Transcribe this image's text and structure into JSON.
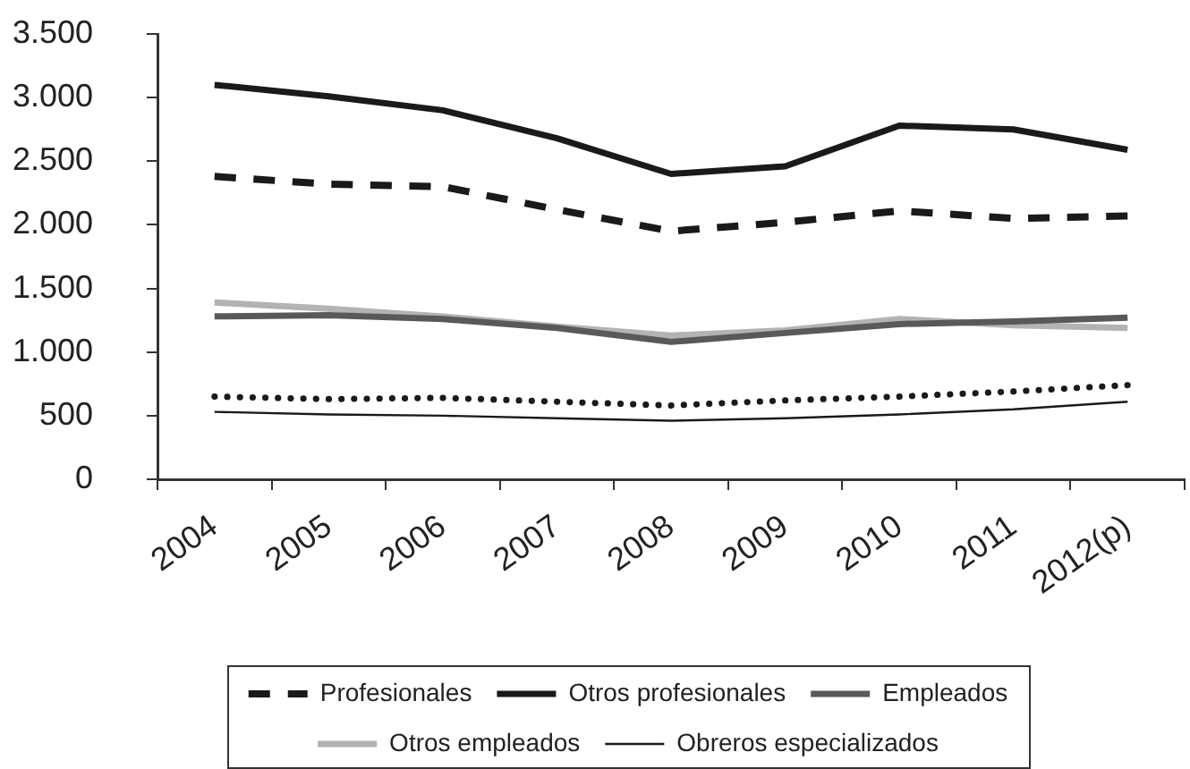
{
  "chart_data": {
    "type": "line",
    "categories": [
      "2004",
      "2005",
      "2006",
      "2007",
      "2008",
      "2009",
      "2010",
      "2011",
      "2012(p)"
    ],
    "series": [
      {
        "name": "Profesionales",
        "color": "#1a1a1a",
        "line_style": "dashed",
        "values": [
          2380,
          2320,
          2300,
          2120,
          1950,
          2020,
          2110,
          2050,
          2070
        ]
      },
      {
        "name": "Otros profesionales",
        "color": "#1a1a1a",
        "values": [
          3100,
          3010,
          2900,
          2680,
          2400,
          2460,
          2780,
          2750,
          2590
        ]
      },
      {
        "name": "Empleados",
        "color": "#595959",
        "values": [
          1280,
          1290,
          1260,
          1190,
          1080,
          1150,
          1220,
          1240,
          1270
        ]
      },
      {
        "name": "Otros empleados",
        "color": "#b3b3b3",
        "values": [
          1390,
          1340,
          1280,
          1200,
          1130,
          1170,
          1260,
          1210,
          1190
        ]
      },
      {
        "name": "Obreros especializados",
        "color": "#1a1a1a",
        "values": [
          530,
          510,
          500,
          480,
          460,
          480,
          510,
          550,
          610
        ]
      },
      {
        "color": "#1a1a1a",
        "line_style": "dotted",
        "values": [
          650,
          630,
          640,
          610,
          580,
          620,
          650,
          690,
          740
        ]
      }
    ],
    "ylim": [
      0,
      3500
    ],
    "yticks": [
      0,
      500,
      {
        "value": 1000,
        "label": "1.000"
      },
      {
        "value": 1500,
        "label": "1.500"
      },
      {
        "value": 2000,
        "label": "2.000"
      },
      {
        "value": 2500,
        "label": "2.500"
      },
      {
        "value": 3000,
        "label": "3.000"
      },
      {
        "value": 3500,
        "label": "3.500"
      }
    ],
    "legend": "bottom",
    "marker": "none",
    "line_style": "solid"
  }
}
